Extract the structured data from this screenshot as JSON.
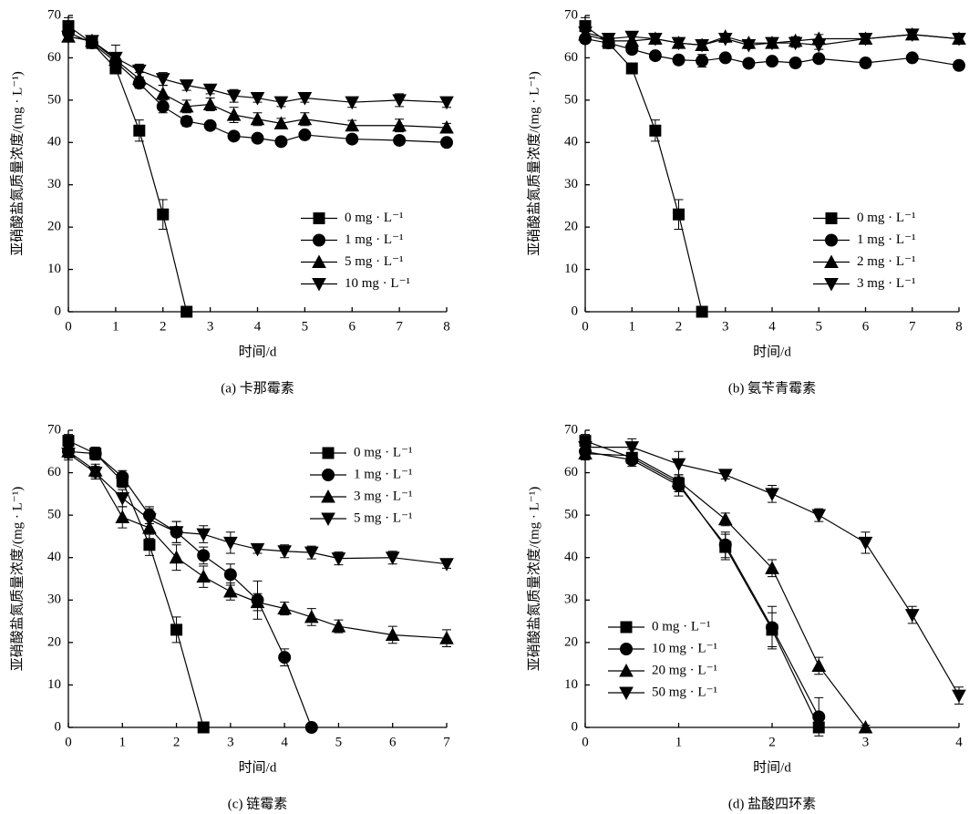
{
  "chart_data": [
    {
      "type": "line",
      "title": "(a) 卡那霉素",
      "xlabel": "时间/d",
      "ylabel": "亚硝酸盐氮质量浓度/(mg · L⁻¹)",
      "x": [
        0,
        0.5,
        1,
        1.5,
        2,
        2.5,
        3,
        3.5,
        4,
        4.5,
        5,
        6,
        7,
        8
      ],
      "xlim": [
        0,
        8
      ],
      "xticks": [
        0,
        1,
        2,
        3,
        4,
        5,
        6,
        7,
        8
      ],
      "ylim": [
        0,
        70
      ],
      "yticks": [
        0,
        10,
        20,
        30,
        40,
        50,
        60,
        70
      ],
      "legend": "center right",
      "series": [
        {
          "name": "0 mg · L⁻¹",
          "color": "#000000",
          "marker": "square",
          "values": [
            67.5,
            63.5,
            57.5,
            42.8,
            23,
            0,
            null,
            null,
            null,
            null,
            null,
            null,
            null,
            null
          ],
          "errors": [
            2,
            0.8,
            1.2,
            2.5,
            3.5,
            0.5,
            null,
            null,
            null,
            null,
            null,
            null,
            null,
            null
          ]
        },
        {
          "name": "1 mg · L⁻¹",
          "color": "#000000",
          "marker": "circle",
          "values": [
            66,
            63.5,
            59,
            54,
            48.5,
            45,
            44,
            41.5,
            41,
            40.2,
            41.8,
            40.8,
            40.5,
            40
          ],
          "errors": [
            1,
            0.8,
            1,
            1.2,
            1.5,
            1.2,
            0.8,
            0.8,
            0.8,
            0.8,
            0.8,
            0.8,
            0.8,
            0.8
          ]
        },
        {
          "name": "5 mg · L⁻¹",
          "color": "#000000",
          "marker": "triangle-up",
          "values": [
            65,
            64,
            59.5,
            55,
            51.5,
            48.5,
            49,
            46.5,
            45.5,
            44.5,
            45.5,
            44,
            44,
            43.5
          ],
          "errors": [
            1,
            0.8,
            1.5,
            1.5,
            2,
            1.5,
            1.5,
            1.8,
            1.5,
            1.2,
            1.5,
            1.2,
            1.5,
            1
          ]
        },
        {
          "name": "10 mg · L⁻¹",
          "color": "#000000",
          "marker": "triangle-down",
          "values": [
            65,
            64,
            60,
            57,
            55,
            53.5,
            52.5,
            51,
            50.5,
            49.5,
            50.5,
            49.5,
            50,
            49.5
          ],
          "errors": [
            1,
            0.8,
            3,
            1.5,
            1.5,
            1.2,
            1,
            1.5,
            1,
            1,
            1,
            1.2,
            1.5,
            1.2
          ]
        }
      ]
    },
    {
      "type": "line",
      "title": "(b) 氨苄青霉素",
      "xlabel": "时间/d",
      "ylabel": "亚硝酸盐氮质量浓度/(mg · L⁻¹)",
      "x": [
        0,
        0.5,
        1,
        1.5,
        2,
        2.5,
        3,
        3.5,
        4,
        4.5,
        5,
        6,
        7,
        8
      ],
      "xlim": [
        0,
        8
      ],
      "xticks": [
        0,
        1,
        2,
        3,
        4,
        5,
        6,
        7,
        8
      ],
      "ylim": [
        0,
        70
      ],
      "yticks": [
        0,
        10,
        20,
        30,
        40,
        50,
        60,
        70
      ],
      "legend": "center right",
      "series": [
        {
          "name": "0 mg · L⁻¹",
          "color": "#000000",
          "marker": "square",
          "values": [
            67.5,
            63.5,
            57.5,
            42.8,
            23,
            0,
            null,
            null,
            null,
            null,
            null,
            null,
            null,
            null
          ],
          "errors": [
            2,
            0.8,
            1.2,
            2.5,
            3.5,
            0.5,
            null,
            null,
            null,
            null,
            null,
            null,
            null,
            null
          ]
        },
        {
          "name": "1 mg · L⁻¹",
          "color": "#000000",
          "marker": "circle",
          "values": [
            64.5,
            63.5,
            62,
            60.5,
            59.5,
            59.3,
            60,
            58.7,
            59.2,
            58.8,
            59.8,
            58.8,
            60,
            58.2
          ],
          "errors": [
            1,
            0.8,
            1,
            1,
            1,
            1.5,
            0.8,
            0.8,
            0.8,
            0.8,
            0.8,
            0.8,
            0.8,
            0.8
          ]
        },
        {
          "name": "2 mg · L⁻¹",
          "color": "#000000",
          "marker": "triangle-up",
          "values": [
            65.5,
            64,
            64,
            64.5,
            63.5,
            63,
            65,
            63.5,
            63.5,
            64,
            64.5,
            64.5,
            65.5,
            64.5
          ],
          "errors": [
            1,
            0.8,
            1,
            0.8,
            1,
            1,
            0.8,
            0.8,
            0.8,
            1,
            1,
            0.8,
            1,
            0.8
          ]
        },
        {
          "name": "3 mg · L⁻¹",
          "color": "#000000",
          "marker": "triangle-down",
          "values": [
            66,
            64.5,
            65,
            64.5,
            63.5,
            63,
            64.5,
            63,
            63.5,
            63.5,
            63,
            64.5,
            65.5,
            64.5
          ],
          "errors": [
            1,
            0.8,
            1,
            0.8,
            1,
            1,
            0.8,
            0.8,
            0.8,
            1,
            1,
            0.8,
            1,
            0.8
          ]
        }
      ]
    },
    {
      "type": "line",
      "title": "(c) 链霉素",
      "xlabel": "时间/d",
      "ylabel": "亚硝酸盐氮质量浓度/(mg · L⁻¹)",
      "x": [
        0,
        0.5,
        1,
        1.5,
        2,
        2.5,
        3,
        3.5,
        4,
        4.5,
        5,
        6,
        7
      ],
      "xlim": [
        0,
        7
      ],
      "xticks": [
        0,
        1,
        2,
        3,
        4,
        5,
        6,
        7
      ],
      "ylim": [
        0,
        70
      ],
      "yticks": [
        0,
        10,
        20,
        30,
        40,
        50,
        60,
        70
      ],
      "legend": "upper right",
      "series": [
        {
          "name": "0 mg · L⁻¹",
          "color": "#000000",
          "marker": "square",
          "values": [
            67.5,
            64.5,
            58,
            43,
            23,
            0,
            null,
            null,
            null,
            null,
            null,
            null,
            null
          ],
          "errors": [
            1.5,
            1.5,
            1.5,
            2.5,
            3,
            0.5,
            null,
            null,
            null,
            null,
            null,
            null,
            null
          ]
        },
        {
          "name": "1 mg · L⁻¹",
          "color": "#000000",
          "marker": "circle",
          "values": [
            65,
            64.5,
            59,
            50,
            46,
            40.5,
            36,
            30,
            16.5,
            0,
            null,
            null,
            null
          ],
          "errors": [
            1.5,
            1.5,
            1.5,
            2,
            2.5,
            2,
            2.5,
            4.5,
            2,
            0.5,
            null,
            null,
            null
          ]
        },
        {
          "name": "3 mg · L⁻¹",
          "color": "#000000",
          "marker": "triangle-up",
          "values": [
            65,
            60.5,
            49.5,
            47,
            40,
            35.5,
            32,
            29.5,
            28,
            26,
            23.8,
            21.8,
            21
          ],
          "errors": [
            1.5,
            1.5,
            2.5,
            2.5,
            3,
            2.5,
            2,
            2,
            1.5,
            2,
            1.5,
            2,
            2
          ]
        },
        {
          "name": "5 mg · L⁻¹",
          "color": "#000000",
          "marker": "triangle-down",
          "values": [
            64.5,
            60,
            54,
            49,
            46,
            45.5,
            43.5,
            42,
            41.5,
            41.2,
            39.8,
            40,
            38.5
          ],
          "errors": [
            1.5,
            1.5,
            2,
            2.5,
            2.5,
            2,
            2.5,
            1,
            1.5,
            1.5,
            1.5,
            1.5,
            1
          ]
        }
      ]
    },
    {
      "type": "line",
      "title": "(d) 盐酸四环素",
      "xlabel": "时间/d",
      "ylabel": "亚硝酸盐氮质量浓度/(mg · L⁻¹)",
      "x": [
        0,
        0.5,
        1,
        1.5,
        2,
        2.5,
        3,
        3.5,
        4
      ],
      "xlim": [
        0,
        4
      ],
      "xticks": [
        0,
        1,
        2,
        3,
        4
      ],
      "ylim": [
        0,
        70
      ],
      "yticks": [
        0,
        10,
        20,
        30,
        40,
        50,
        60,
        70
      ],
      "legend": "lower left",
      "series": [
        {
          "name": "0 mg · L⁻¹",
          "color": "#000000",
          "marker": "square",
          "values": [
            67.5,
            63.5,
            57.5,
            42.5,
            23,
            0,
            null,
            null,
            null
          ],
          "errors": [
            1.5,
            1,
            2,
            3,
            4,
            1,
            null,
            null,
            null
          ]
        },
        {
          "name": "10 mg · L⁻¹",
          "color": "#000000",
          "marker": "circle",
          "values": [
            65,
            63,
            57,
            43,
            23.5,
            2.5,
            null,
            null,
            null
          ],
          "errors": [
            1.5,
            1.5,
            2.5,
            3,
            5,
            4.5,
            null,
            null,
            null
          ]
        },
        {
          "name": "20 mg · L⁻¹",
          "color": "#000000",
          "marker": "triangle-up",
          "values": [
            64.5,
            64,
            58,
            49,
            37.5,
            14.5,
            0,
            null,
            null
          ],
          "errors": [
            1.5,
            1.5,
            1.5,
            1.5,
            2,
            2,
            0.5,
            null,
            null
          ]
        },
        {
          "name": "50 mg · L⁻¹",
          "color": "#000000",
          "marker": "triangle-down",
          "values": [
            66,
            66,
            62,
            59.5,
            55,
            50,
            43.5,
            26.5,
            7.5
          ],
          "errors": [
            1.5,
            2,
            3,
            1,
            2,
            1.5,
            2.5,
            2,
            2
          ]
        }
      ]
    }
  ]
}
